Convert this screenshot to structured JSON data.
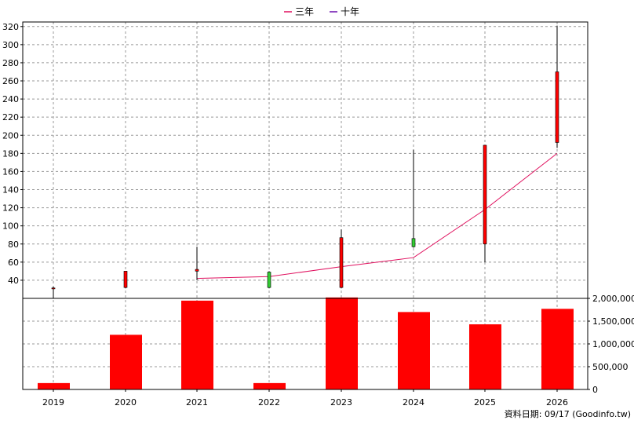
{
  "chart_data": {
    "type": "candlestick-bar-combo",
    "categories": [
      "2019",
      "2020",
      "2021",
      "2022",
      "2023",
      "2024",
      "2025",
      "2026"
    ],
    "legend": [
      {
        "label": "三年",
        "color": "#e0115f"
      },
      {
        "label": "十年",
        "color": "#6a0dad"
      }
    ],
    "price_axis": {
      "ylim": [
        20,
        325
      ],
      "ticks": [
        40,
        60,
        80,
        100,
        120,
        140,
        160,
        180,
        200,
        220,
        240,
        260,
        280,
        300,
        320
      ]
    },
    "candles": [
      {
        "year": "2019",
        "open": 30.5,
        "close": 31.5,
        "high": 33,
        "low": 20
      },
      {
        "year": "2020",
        "open": 32,
        "close": 50,
        "high": 50,
        "low": 31
      },
      {
        "year": "2021",
        "open": 50,
        "close": 52,
        "high": 77,
        "low": 40
      },
      {
        "year": "2022",
        "open": 49,
        "close": 32,
        "high": 50,
        "low": 31
      },
      {
        "year": "2023",
        "open": 32,
        "close": 87,
        "high": 96,
        "low": 31
      },
      {
        "year": "2024",
        "open": 86,
        "close": 77,
        "high": 184,
        "low": 76
      },
      {
        "year": "2025",
        "open": 80,
        "close": 189,
        "high": 189,
        "low": 60
      },
      {
        "year": "2026",
        "open": 192,
        "close": 270,
        "high": 321,
        "low": 186
      }
    ],
    "line_series": [
      {
        "name": "三年",
        "color": "#e0115f",
        "values": [
          null,
          null,
          42,
          44,
          55,
          65,
          118,
          180
        ]
      }
    ],
    "volume_axis": {
      "ylim": [
        0,
        2000000
      ],
      "ticks": [
        0,
        500000,
        1000000,
        1500000,
        2000000
      ],
      "tick_labels": [
        "0",
        "500,000",
        "1,000,000",
        "1,500,000",
        "2,000,000"
      ]
    },
    "volume": [
      140000,
      1200000,
      1950000,
      140000,
      2020000,
      1700000,
      1430000,
      1770000
    ],
    "colors": {
      "bar": "#ff0000",
      "candle_up": "#ff0000",
      "candle_down": "#33cc33",
      "grid": "#999999"
    }
  },
  "footer": {
    "text": "資料日期: 09/17  (Goodinfo.tw)"
  }
}
